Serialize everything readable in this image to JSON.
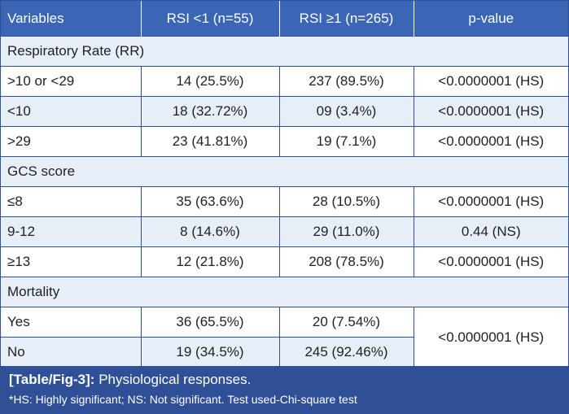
{
  "table": {
    "headers": [
      "Variables",
      "RSI <1 (n=55)",
      "RSI ≥1 (n=265)",
      "p-value"
    ],
    "sections": [
      {
        "title": "Respiratory Rate (RR)",
        "rows": [
          [
            ">10 or <29",
            "14 (25.5%)",
            "237 (89.5%)",
            "<0.0000001 (HS)"
          ],
          [
            "<10",
            "18 (32.72%)",
            "09 (3.4%)",
            "<0.0000001 (HS)"
          ],
          [
            ">29",
            "23 (41.81%)",
            "19 (7.1%)",
            "<0.0000001 (HS)"
          ]
        ]
      },
      {
        "title": "GCS score",
        "rows": [
          [
            "≤8",
            "35 (63.6%)",
            "28 (10.5%)",
            "<0.0000001 (HS)"
          ],
          [
            "9-12",
            "8 (14.6%)",
            "29 (11.0%)",
            "0.44 (NS)"
          ],
          [
            "≥13",
            "12 (21.8%)",
            "208 (78.5%)",
            "<0.0000001 (HS)"
          ]
        ]
      },
      {
        "title": "Mortality",
        "rows": [
          [
            "Yes",
            "36 (65.5%)",
            "20 (7.54%)",
            "<0.0000001 (HS)"
          ],
          [
            "No",
            "19 (34.5%)",
            "245 (92.46%)",
            ""
          ]
        ]
      }
    ]
  },
  "caption": {
    "label": "[Table/Fig-3]:",
    "title": "Physiological responses.",
    "note": "*HS: Highly significant; NS: Not significant. Test used-Chi-square test"
  },
  "colors": {
    "header_bg": "#3a66b5",
    "caption_bg": "#2f4f97",
    "row_tint": "#e6eef8",
    "border": "#2f4f97"
  }
}
